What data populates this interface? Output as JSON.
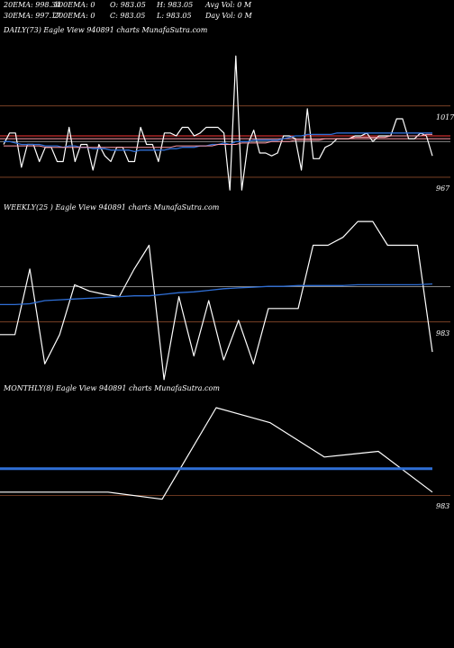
{
  "header": {
    "row1": [
      "20EMA: 998.34",
      "100EMA: 0",
      "O: 983.05",
      "H: 983.05",
      "Avg Vol: 0  M"
    ],
    "row2": [
      "30EMA: 997.17",
      "200EMA: 0",
      "C: 983.05",
      "L: 983.05",
      "Day Vol: 0  M"
    ]
  },
  "colors": {
    "background": "#000000",
    "price": "#ffffff",
    "ema": "#2f6fd6",
    "level_line": "#8b4a2a",
    "red_band": "#ff3a3a",
    "pink_band": "#ff9aa8",
    "gray_band": "#999999"
  },
  "chart_data": [
    {
      "type": "line",
      "label": "DAILY(73) Eagle  View  940891 charts MunafaSutra.com",
      "yticks": [
        {
          "value": 1017,
          "label": "1017"
        },
        {
          "value": 967,
          "label": "967"
        }
      ],
      "ylim": [
        943,
        1066
      ],
      "series": [
        {
          "values": [
            990,
            998,
            998,
            974,
            990,
            990,
            978,
            988,
            988,
            978,
            978,
            1002,
            978,
            990,
            990,
            972,
            990,
            982,
            978,
            988,
            988,
            978,
            978,
            1002,
            990,
            990,
            978,
            998,
            998,
            996,
            1002,
            1002,
            996,
            998,
            1002,
            1002,
            1002,
            998,
            958,
            1052,
            958,
            990,
            1000,
            984,
            984,
            982,
            984,
            996,
            996,
            994,
            972,
            1015,
            980,
            980,
            988,
            990,
            994,
            994,
            994,
            996,
            996,
            998,
            992,
            996,
            996,
            996,
            1008,
            1008,
            994,
            994,
            998,
            996,
            982
          ]
        },
        {
          "values": [
            992,
            992,
            991,
            990,
            990,
            990,
            990,
            989,
            989,
            989,
            988,
            989,
            989,
            988,
            988,
            987,
            987,
            987,
            986,
            986,
            986,
            986,
            985,
            986,
            986,
            986,
            986,
            986,
            987,
            987,
            988,
            988,
            988,
            989,
            989,
            990,
            990,
            991,
            990,
            992,
            992,
            992,
            993,
            993,
            993,
            993,
            993,
            994,
            995,
            996,
            996,
            997,
            997,
            997,
            997,
            997,
            998,
            998,
            998,
            998,
            998,
            998,
            998,
            998,
            998,
            998,
            998,
            998,
            998,
            998,
            998,
            998,
            998
          ]
        },
        {
          "values": [
            989,
            989,
            989,
            989,
            989,
            989,
            989,
            988,
            988,
            988,
            988,
            988,
            988,
            988,
            988,
            988,
            988,
            988,
            988,
            988,
            988,
            988,
            988,
            988,
            988,
            988,
            988,
            988,
            988,
            989,
            989,
            989,
            989,
            989,
            989,
            989,
            990,
            990,
            990,
            990,
            991,
            991,
            991,
            991,
            991,
            992,
            992,
            992,
            992,
            993,
            993,
            993,
            993,
            993,
            994,
            994,
            994,
            994,
            994,
            995,
            995,
            995,
            995,
            995,
            995,
            996,
            996,
            996,
            996,
            996,
            996,
            997,
            997
          ]
        }
      ]
    },
    {
      "type": "line",
      "label": "WEEKLY(25                    ) Eagle  View  940891 charts MunafaSutra.com",
      "yticks": [
        {
          "value": 983,
          "label": "983"
        }
      ],
      "ylim": [
        895,
        1117
      ],
      "series": [
        {
          "values": [
            967,
            967,
            1050,
            930,
            967,
            1030,
            1022,
            1018,
            1015,
            1050,
            1080,
            910,
            1015,
            940,
            1010,
            935,
            985,
            930,
            1000,
            1000,
            1000,
            1080,
            1080,
            1090,
            1110,
            1110,
            1080,
            1080,
            1080,
            945
          ]
        },
        {
          "values": [
            1005,
            1005,
            1006,
            1010,
            1011,
            1012,
            1013,
            1014,
            1015,
            1016,
            1016,
            1018,
            1020,
            1021,
            1023,
            1025,
            1026,
            1027,
            1028,
            1028,
            1029,
            1029,
            1029,
            1029,
            1030,
            1030,
            1030,
            1030,
            1030,
            1031
          ]
        }
      ]
    },
    {
      "type": "line",
      "label": "MONTHLY(8) Eagle  View  940891 charts MunafaSutra.com",
      "yticks": [
        {
          "value": 983,
          "label": "983"
        }
      ],
      "ylim": [
        888,
        1195
      ],
      "series": [
        {
          "values": [
            990,
            990,
            990,
            975,
            1170,
            1138,
            1065,
            1077,
            990
          ]
        },
        {
          "values": [
            1040,
            1040,
            1040,
            1040,
            1040,
            1040,
            1040,
            1040,
            1040
          ]
        }
      ]
    }
  ]
}
